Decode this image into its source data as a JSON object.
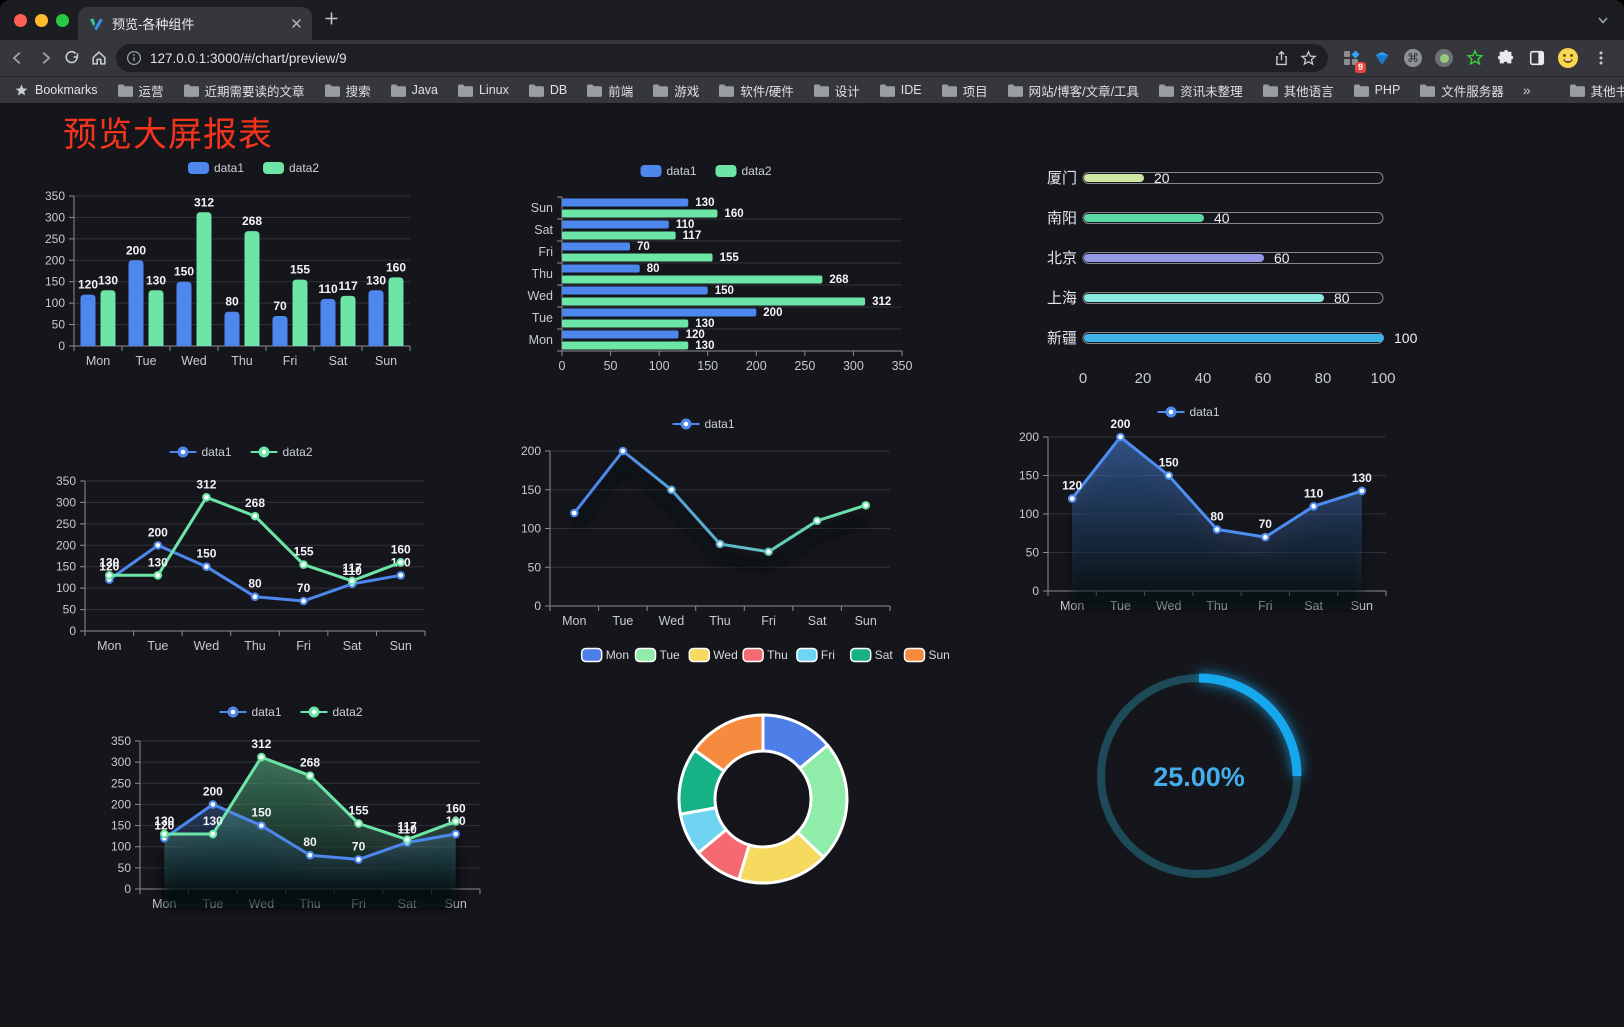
{
  "browser": {
    "tab_title": "预览-各种组件",
    "url": "127.0.0.1:3000/#/chart/preview/9",
    "bookmarks_label": "Bookmarks",
    "bookmarks": [
      "运营",
      "近期需要读的文章",
      "搜索",
      "Java",
      "Linux",
      "DB",
      "前端",
      "游戏",
      "软件/硬件",
      "设计",
      "IDE",
      "项目",
      "网站/博客/文章/工具",
      "资讯未整理",
      "其他语言",
      "PHP",
      "文件服务器"
    ],
    "bookmarks_overflow": "»",
    "other_bookmarks_label": "其他书签",
    "extension_badge": "9",
    "command_glyph": "⌘"
  },
  "page": {
    "title": "预览大屏报表",
    "title_color": "#f6341c",
    "background": "#15161c"
  },
  "chart_data": [
    {
      "id": "grouped-bar",
      "type": "bar",
      "categories": [
        "Mon",
        "Tue",
        "Wed",
        "Thu",
        "Fri",
        "Sat",
        "Sun"
      ],
      "series": [
        {
          "name": "data1",
          "color": "#4d87ee",
          "values": [
            120,
            200,
            150,
            80,
            70,
            110,
            130
          ]
        },
        {
          "name": "data2",
          "color": "#6de5a6",
          "values": [
            130,
            130,
            312,
            268,
            155,
            117,
            160
          ]
        }
      ],
      "ylim": [
        0,
        350
      ],
      "ystep": 50,
      "legend_position": "top",
      "grid": true
    },
    {
      "id": "horizontal-bar",
      "type": "hbar",
      "categories": [
        "Mon",
        "Tue",
        "Wed",
        "Thu",
        "Fri",
        "Sat",
        "Sun"
      ],
      "display_order": "Sun-top",
      "series": [
        {
          "name": "data1",
          "color": "#4d87ee",
          "values": [
            120,
            200,
            150,
            80,
            70,
            110,
            130
          ]
        },
        {
          "name": "data2",
          "color": "#6de5a6",
          "values": [
            130,
            130,
            312,
            268,
            155,
            117,
            160
          ]
        }
      ],
      "xlim": [
        0,
        350
      ],
      "xstep": 50,
      "legend_position": "top"
    },
    {
      "id": "city-progress",
      "type": "progress",
      "max": 100,
      "xticks": [
        0,
        20,
        40,
        60,
        80,
        100
      ],
      "items": [
        {
          "label": "厦门",
          "value": 20,
          "color": "#cfe7a2"
        },
        {
          "label": "南阳",
          "value": 40,
          "color": "#5dd9a4"
        },
        {
          "label": "北京",
          "value": 60,
          "color": "#9497e6"
        },
        {
          "label": "上海",
          "value": 80,
          "color": "#8ae9e1"
        },
        {
          "label": "新疆",
          "value": 100,
          "color": "#3fb3e7"
        }
      ]
    },
    {
      "id": "two-series-line",
      "type": "line",
      "categories": [
        "Mon",
        "Tue",
        "Wed",
        "Thu",
        "Fri",
        "Sat",
        "Sun"
      ],
      "series": [
        {
          "name": "data1",
          "color": "#4d87ee",
          "values": [
            120,
            200,
            150,
            80,
            70,
            110,
            130
          ]
        },
        {
          "name": "data2",
          "color": "#6de5a6",
          "values": [
            130,
            130,
            312,
            268,
            155,
            117,
            160
          ]
        }
      ],
      "ylim": [
        0,
        350
      ],
      "ystep": 50,
      "show_labels": true,
      "shadow": false
    },
    {
      "id": "gradient-line",
      "type": "line",
      "categories": [
        "Mon",
        "Tue",
        "Wed",
        "Thu",
        "Fri",
        "Sat",
        "Sun"
      ],
      "series": [
        {
          "name": "data1",
          "color": "#4d87ee",
          "color_end": "#6de5a6",
          "values": [
            120,
            200,
            150,
            80,
            70,
            110,
            130
          ]
        }
      ],
      "ylim": [
        0,
        200
      ],
      "ystep": 50,
      "show_labels": false,
      "gradient_stroke": true,
      "shadow": true
    },
    {
      "id": "single-area",
      "type": "area",
      "categories": [
        "Mon",
        "Tue",
        "Wed",
        "Thu",
        "Fri",
        "Sat",
        "Sun"
      ],
      "series": [
        {
          "name": "data1",
          "color": "#4d8ef0",
          "values": [
            120,
            200,
            150,
            80,
            70,
            110,
            130
          ]
        }
      ],
      "ylim": [
        0,
        200
      ],
      "ystep": 50,
      "show_labels": true,
      "shadow": true
    },
    {
      "id": "two-series-area",
      "type": "area",
      "categories": [
        "Mon",
        "Tue",
        "Wed",
        "Thu",
        "Fri",
        "Sat",
        "Sun"
      ],
      "series": [
        {
          "name": "data1",
          "color": "#4d87ee",
          "values": [
            120,
            200,
            150,
            80,
            70,
            110,
            130
          ]
        },
        {
          "name": "data2",
          "color": "#6de5a6",
          "values": [
            130,
            130,
            312,
            268,
            155,
            117,
            160
          ]
        }
      ],
      "ylim": [
        0,
        350
      ],
      "ystep": 50,
      "show_labels": true,
      "shadow": true
    },
    {
      "id": "weekday-donut",
      "type": "pie",
      "items": [
        {
          "label": "Mon",
          "value": 120,
          "color": "#4e7fe9"
        },
        {
          "label": "Tue",
          "value": 200,
          "color": "#8feca9"
        },
        {
          "label": "Wed",
          "value": 150,
          "color": "#f6d95f"
        },
        {
          "label": "Thu",
          "value": 80,
          "color": "#f56a70"
        },
        {
          "label": "Fri",
          "value": 70,
          "color": "#6fd3f2"
        },
        {
          "label": "Sat",
          "value": 110,
          "color": "#16b286"
        },
        {
          "label": "Sun",
          "value": 130,
          "color": "#f68a3e"
        }
      ],
      "start_angle": "top",
      "direction": "clockwise",
      "inner_radius_ratio": 0.57
    },
    {
      "id": "percent-gauge",
      "type": "gauge",
      "value": 25,
      "max": 100,
      "label": "25.00%",
      "track_color": "#1d4a57",
      "progress_color": "#17a7ec",
      "text_color": "#45aeea"
    }
  ]
}
